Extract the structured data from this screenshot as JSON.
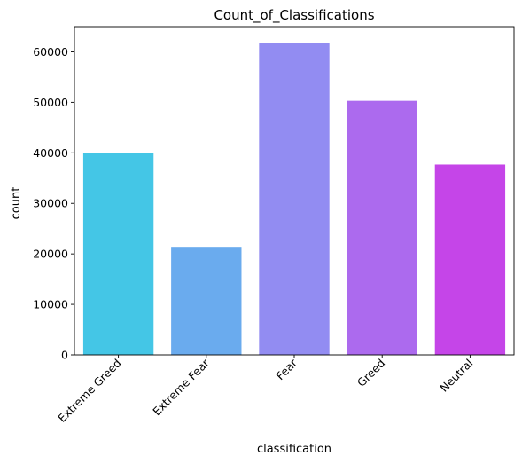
{
  "chart_data": {
    "type": "bar",
    "title": "Count_of_Classifications",
    "xlabel": "classification",
    "ylabel": "count",
    "categories": [
      "Extreme Greed",
      "Extreme Fear",
      "Fear",
      "Greed",
      "Neutral"
    ],
    "values": [
      39992,
      21400,
      61837,
      50303,
      37686
    ],
    "colors": [
      "#44c6e6",
      "#6aabee",
      "#928cf2",
      "#ac6aee",
      "#c545e8"
    ],
    "ylim": [
      0,
      65000
    ],
    "yticks": [
      0,
      10000,
      20000,
      30000,
      40000,
      50000,
      60000
    ],
    "grid": false,
    "legend": "none"
  }
}
